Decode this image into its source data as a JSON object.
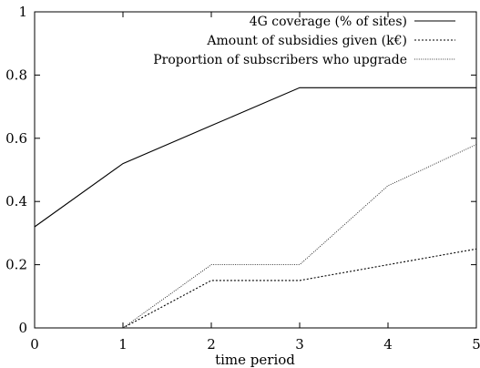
{
  "chart_data": {
    "type": "line",
    "title": "",
    "xlabel": "time period",
    "ylabel": "",
    "xlim": [
      0,
      5
    ],
    "ylim": [
      0,
      1
    ],
    "x_ticks": [
      0,
      1,
      2,
      3,
      4,
      5
    ],
    "y_ticks": [
      0,
      0.2,
      0.4,
      0.6,
      0.8,
      1
    ],
    "x_tick_labels": [
      "0",
      "1",
      "2",
      "3",
      "4",
      "5"
    ],
    "y_tick_labels": [
      "0",
      "0.2",
      "0.4",
      "0.6",
      "0.8",
      "1"
    ],
    "grid": false,
    "legend_position": "top-right",
    "x": [
      0,
      1,
      2,
      3,
      4,
      5
    ],
    "series": [
      {
        "name": "4G coverage (% of sites)",
        "values": [
          0.32,
          0.52,
          0.64,
          0.76,
          0.76,
          0.76
        ],
        "color": "#000000",
        "style": "solid"
      },
      {
        "name": "Amount of subsidies given (k€)",
        "values": [
          0,
          0,
          0.15,
          0.15,
          0.2,
          0.25
        ],
        "color": "#000000",
        "style": "dotted"
      },
      {
        "name": "Proportion of subscribers who upgrade",
        "values": [
          0,
          0,
          0.2,
          0.2,
          0.45,
          0.58
        ],
        "color": "#000000",
        "style": "fine-dotted"
      }
    ]
  }
}
